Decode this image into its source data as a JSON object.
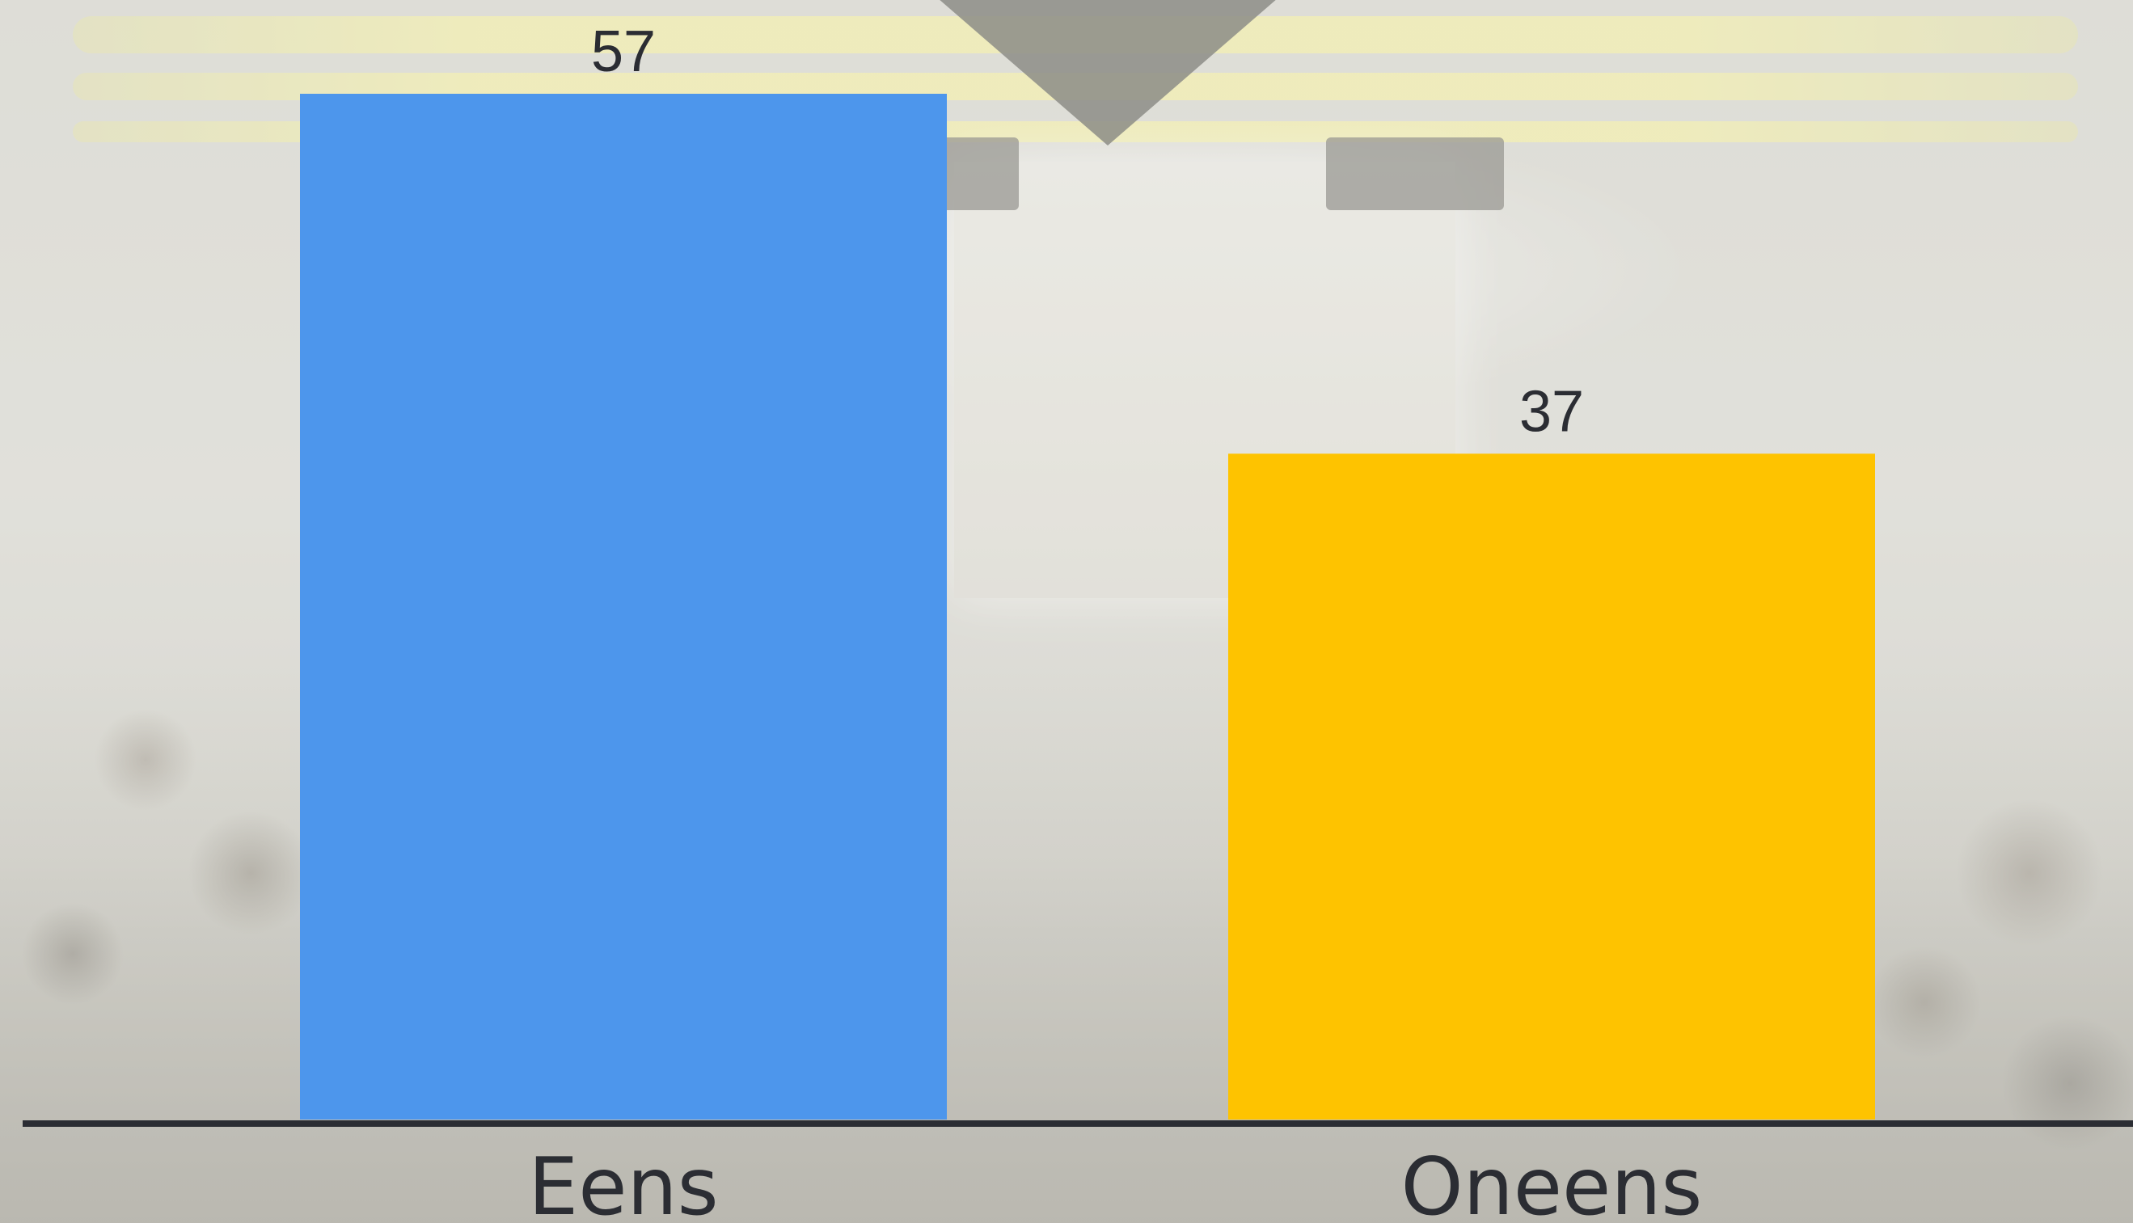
{
  "chart_data": {
    "type": "bar",
    "categories": [
      "Eens",
      "Oneens"
    ],
    "values": [
      57,
      37
    ],
    "colors": [
      "#4d96ec",
      "#fec300"
    ],
    "data_labels": [
      "57",
      "37"
    ],
    "title": "",
    "xlabel": "",
    "ylabel": "",
    "ylim": [
      0,
      57
    ],
    "grid": false,
    "legend": "none",
    "axis_color": "#2b2d33",
    "label_color": "#2b2d33"
  }
}
